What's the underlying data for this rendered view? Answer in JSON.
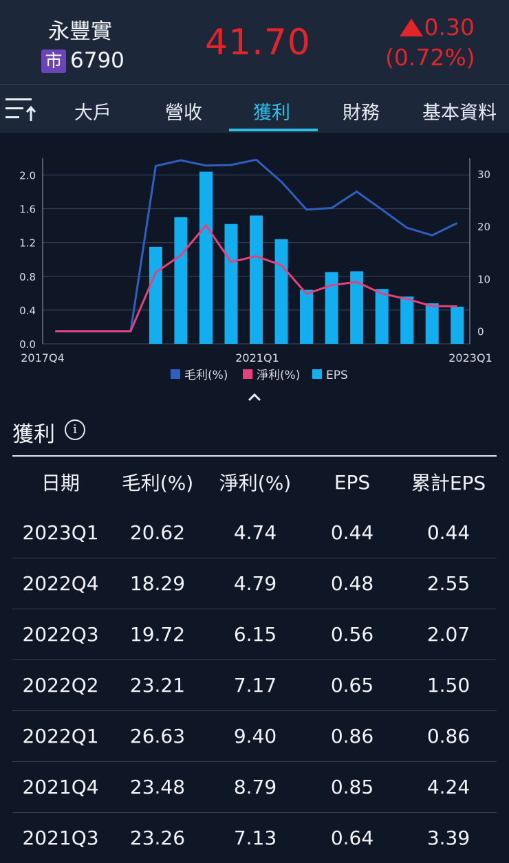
{
  "header": {
    "stock_name": "永豐實",
    "market_badge": "市",
    "stock_code": "6790",
    "price": "41.70",
    "change": "0.30",
    "change_pct": "(0.72%)",
    "up_color": "#e3242b"
  },
  "tabs": [
    {
      "label": "大戶",
      "active": false
    },
    {
      "label": "營收",
      "active": false
    },
    {
      "label": "獲利",
      "active": true
    },
    {
      "label": "財務",
      "active": false
    },
    {
      "label": "基本資料",
      "active": false
    }
  ],
  "chart_data": {
    "type": "bar+line",
    "x_tick_labels": [
      "2017Q4",
      "2021Q1",
      "2023Q1"
    ],
    "left_axis": {
      "ticks": [
        "0.0",
        "0.4",
        "0.8",
        "1.2",
        "1.6",
        "2.0"
      ],
      "ylim": [
        0,
        2.2
      ]
    },
    "right_axis": {
      "ticks": [
        "0",
        "10",
        "20",
        "30"
      ],
      "ylim": [
        -2.4,
        33
      ]
    },
    "series": [
      {
        "name": "毛利(%)",
        "type": "line",
        "axis": "right",
        "color": "#2f5fbf",
        "values": [
          0,
          0,
          0,
          0,
          31.5,
          32.6,
          31.6,
          31.7,
          32.7,
          28.5,
          23.2,
          23.5,
          26.63,
          23.21,
          19.72,
          18.29,
          20.62
        ]
      },
      {
        "name": "淨利(%)",
        "type": "line",
        "axis": "right",
        "color": "#e5417a",
        "values": [
          0,
          0,
          0,
          0,
          11.2,
          14.5,
          20.2,
          13.2,
          14.3,
          12.6,
          7.13,
          8.79,
          9.4,
          7.17,
          6.15,
          4.79,
          4.74
        ]
      },
      {
        "name": "EPS",
        "type": "bar",
        "axis": "left",
        "color": "#13aef0",
        "values": [
          0,
          0,
          0,
          0,
          1.15,
          1.5,
          2.04,
          1.42,
          1.52,
          1.24,
          0.64,
          0.85,
          0.86,
          0.65,
          0.56,
          0.48,
          0.44
        ]
      }
    ],
    "legend": [
      {
        "label": "毛利(%)",
        "color": "#2f5fbf"
      },
      {
        "label": "淨利(%)",
        "color": "#e5417a"
      },
      {
        "label": "EPS",
        "color": "#13aef0"
      }
    ],
    "legend_position": "bottom",
    "grid": true
  },
  "section": {
    "title": "獲利",
    "info_glyph": "i"
  },
  "table": {
    "headers": [
      "日期",
      "毛利(%)",
      "淨利(%)",
      "EPS",
      "累計EPS"
    ],
    "rows": [
      [
        "2023Q1",
        "20.62",
        "4.74",
        "0.44",
        "0.44"
      ],
      [
        "2022Q4",
        "18.29",
        "4.79",
        "0.48",
        "2.55"
      ],
      [
        "2022Q3",
        "19.72",
        "6.15",
        "0.56",
        "2.07"
      ],
      [
        "2022Q2",
        "23.21",
        "7.17",
        "0.65",
        "1.50"
      ],
      [
        "2022Q1",
        "26.63",
        "9.40",
        "0.86",
        "0.86"
      ],
      [
        "2021Q4",
        "23.48",
        "8.79",
        "0.85",
        "4.24"
      ],
      [
        "2021Q3",
        "23.26",
        "7.13",
        "0.64",
        "3.39"
      ]
    ]
  }
}
